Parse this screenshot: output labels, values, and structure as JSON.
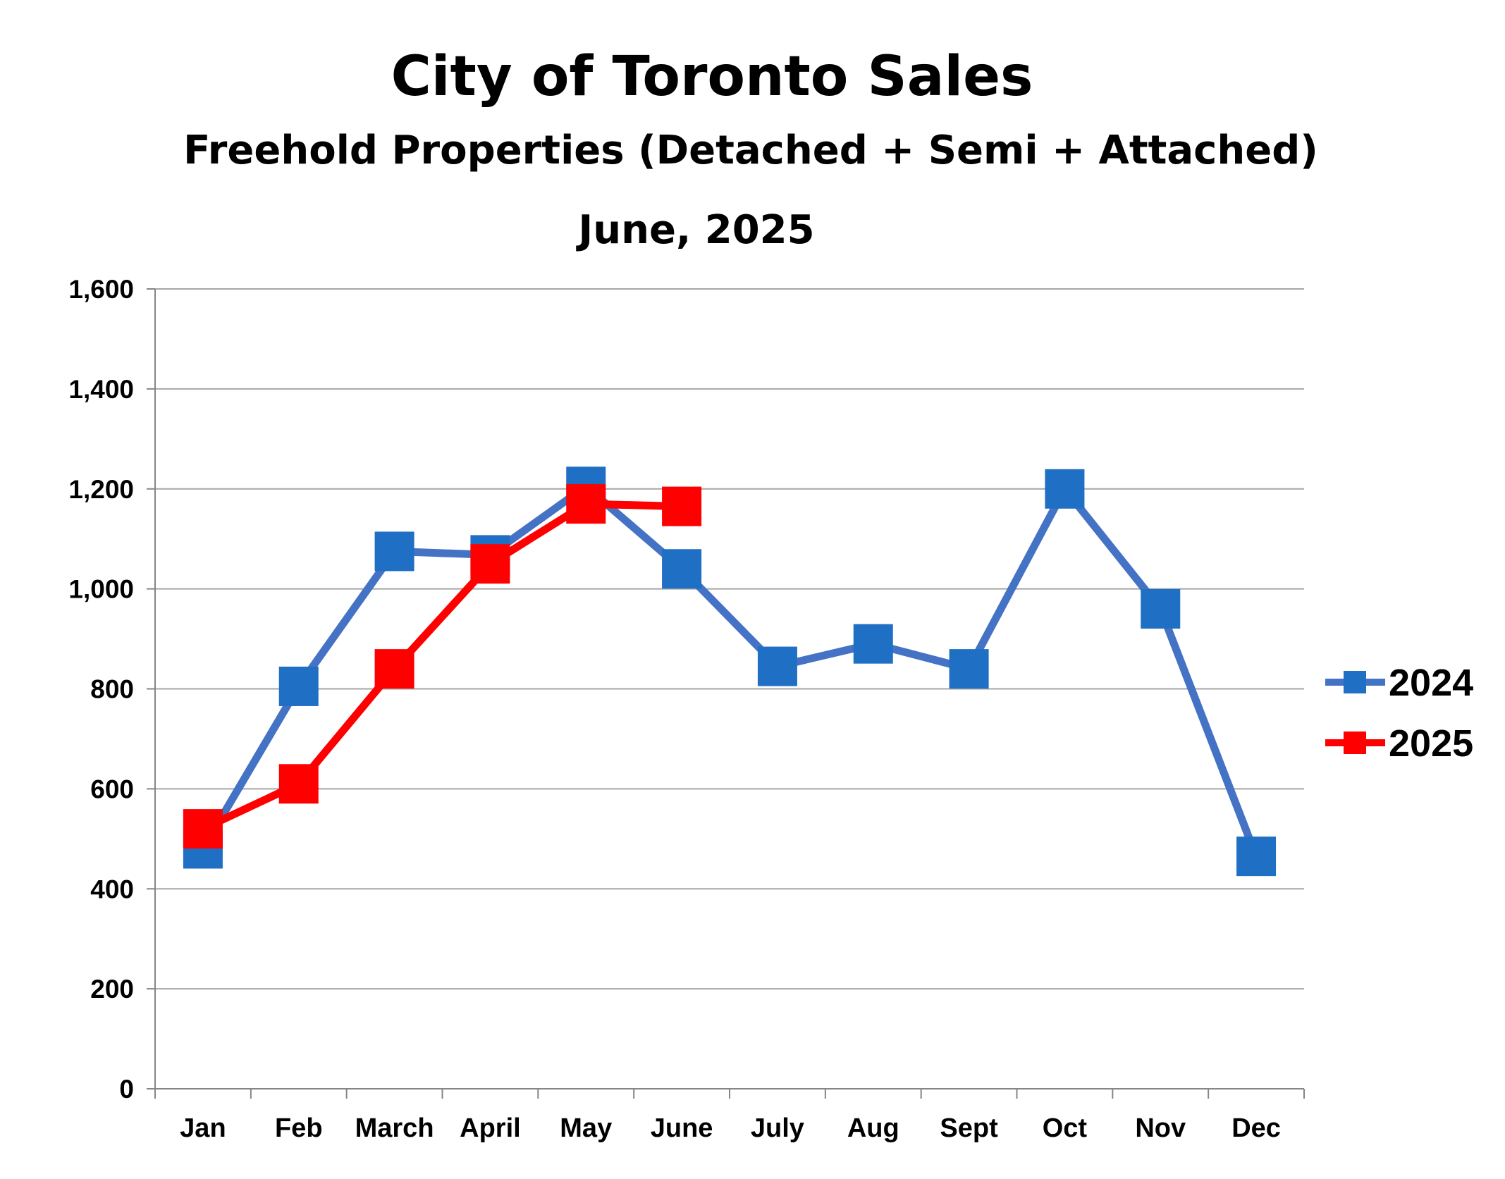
{
  "chart_data": {
    "type": "line",
    "title": "City of Toronto Sales",
    "subtitle": "Freehold Properties (Detached + Semi + Attached)",
    "date_label": "June, 2025",
    "categories": [
      "Jan",
      "Feb",
      "March",
      "April",
      "May",
      "June",
      "July",
      "Aug",
      "Sept",
      "Oct",
      "Nov",
      "Dec"
    ],
    "ylim": [
      0,
      1600
    ],
    "yticks": [
      0,
      200,
      400,
      600,
      800,
      1000,
      1200,
      1400,
      1600
    ],
    "ytick_labels": [
      "0",
      "200",
      "400",
      "600",
      "800",
      "1,000",
      "1,200",
      "1,400",
      "1,600"
    ],
    "grid": true,
    "legend_position": "right",
    "series": [
      {
        "name": "2024",
        "color": "#4472C4",
        "marker_color": "#1F6FC4",
        "values": [
          480,
          805,
          1075,
          1068,
          1205,
          1040,
          845,
          890,
          840,
          1200,
          960,
          465
        ]
      },
      {
        "name": "2025",
        "color": "#FF0000",
        "marker_color": "#FF0000",
        "values": [
          520,
          610,
          840,
          1050,
          1170,
          1165,
          null,
          null,
          null,
          null,
          null,
          null
        ]
      }
    ]
  }
}
